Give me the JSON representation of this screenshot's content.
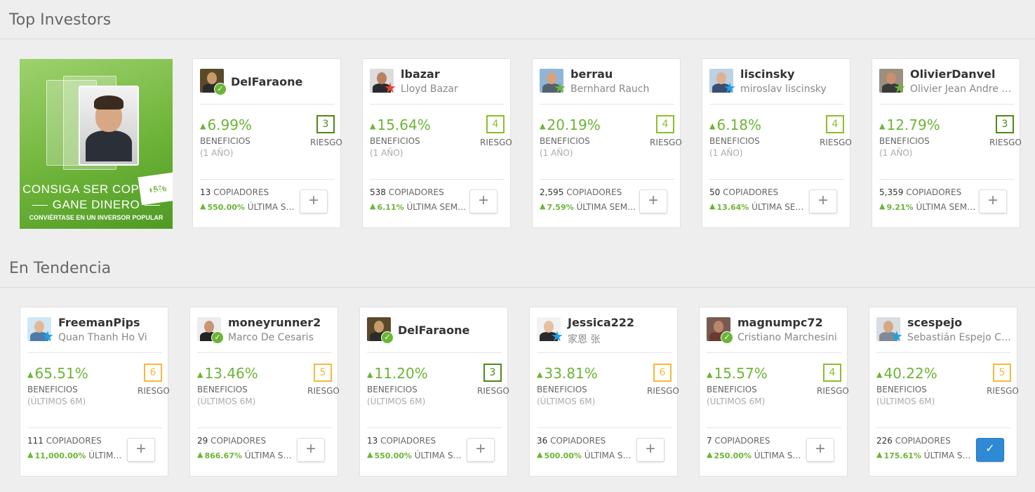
{
  "sections": {
    "top_investors_title": "Top Investors",
    "trending_title": "En Tendencia"
  },
  "promo": {
    "badge": "+5%",
    "line1": "CONSIGA SER COPIADO",
    "line2": "GANE DINERO",
    "line3": "CONVIÉRTASE EN UN INVERSOR POPULAR"
  },
  "labels": {
    "benefits": "BENEFICIOS",
    "risk": "RIESGO",
    "copiers": "COPIADORES",
    "last_week": "ÚLTIMA SEMANA",
    "period_year": "(1 AÑO)",
    "period_6m": "(ÚLTIMOS 6M)",
    "up_arrow": "▲",
    "plus": "+",
    "check": "✓"
  },
  "colors": {
    "gain_green": "#6bb536",
    "risk_green": "#6bb536",
    "risk_olive": "#8bbf2a",
    "risk_yellow": "#f5b93b",
    "risk_dark_green": "#4c8a15",
    "copy_checked": "#2f8ad6"
  },
  "top_investors": [
    {
      "username": "DelFaraone",
      "fullname": "",
      "badge": "verified-icon",
      "gain": "6.99%",
      "risk": "3",
      "risk_color": "#4c8a15",
      "copiers": "13",
      "weekly": "550.00%",
      "copied": false
    },
    {
      "username": "lbazar",
      "fullname": "Lloyd Bazar",
      "badge": "star-red-icon",
      "gain": "15.64%",
      "risk": "4",
      "risk_color": "#8bbf2a",
      "copiers": "538",
      "weekly": "6.11%",
      "copied": false
    },
    {
      "username": "berrau",
      "fullname": "Bernhard Rauch",
      "badge": "star-green-icon",
      "gain": "20.19%",
      "risk": "4",
      "risk_color": "#8bbf2a",
      "copiers": "2,595",
      "weekly": "7.59%",
      "copied": false
    },
    {
      "username": "liscinsky",
      "fullname": "miroslav liscinsky",
      "badge": "star-blue-icon",
      "gain": "6.18%",
      "risk": "4",
      "risk_color": "#8bbf2a",
      "copiers": "50",
      "weekly": "13.64%",
      "copied": false
    },
    {
      "username": "OlivierDanvel",
      "fullname": "Olivier Jean Andre Danvel",
      "badge": "star-green-icon",
      "gain": "12.79%",
      "risk": "3",
      "risk_color": "#4c8a15",
      "copiers": "5,359",
      "weekly": "9.21%",
      "copied": false
    }
  ],
  "trending": [
    {
      "username": "FreemanPips",
      "fullname": "Quan Thanh Ho Vi",
      "badge": "star-blue-icon",
      "gain": "65.51%",
      "risk": "6",
      "risk_color": "#f5b93b",
      "copiers": "111",
      "weekly": "11,000.00%",
      "copied": false
    },
    {
      "username": "moneyrunner2",
      "fullname": "Marco De Cesaris",
      "badge": "verified-icon",
      "gain": "13.46%",
      "risk": "5",
      "risk_color": "#f5b93b",
      "copiers": "29",
      "weekly": "866.67%",
      "copied": false
    },
    {
      "username": "DelFaraone",
      "fullname": "",
      "badge": "verified-icon",
      "gain": "11.20%",
      "risk": "3",
      "risk_color": "#4c8a15",
      "copiers": "13",
      "weekly": "550.00%",
      "copied": false
    },
    {
      "username": "Jessica222",
      "fullname": "家恩 张",
      "badge": "star-blue-icon",
      "gain": "33.81%",
      "risk": "6",
      "risk_color": "#f5b93b",
      "copiers": "36",
      "weekly": "500.00%",
      "copied": false
    },
    {
      "username": "magnumpc72",
      "fullname": "Cristiano Marchesini",
      "badge": "verified-icon",
      "gain": "15.57%",
      "risk": "4",
      "risk_color": "#8bbf2a",
      "copiers": "7",
      "weekly": "250.00%",
      "copied": false
    },
    {
      "username": "scespejo",
      "fullname": "Sebastián Espejo Castillo",
      "badge": "star-blue-icon",
      "gain": "40.22%",
      "risk": "5",
      "risk_color": "#f5b93b",
      "copiers": "226",
      "weekly": "175.61%",
      "copied": true
    }
  ]
}
